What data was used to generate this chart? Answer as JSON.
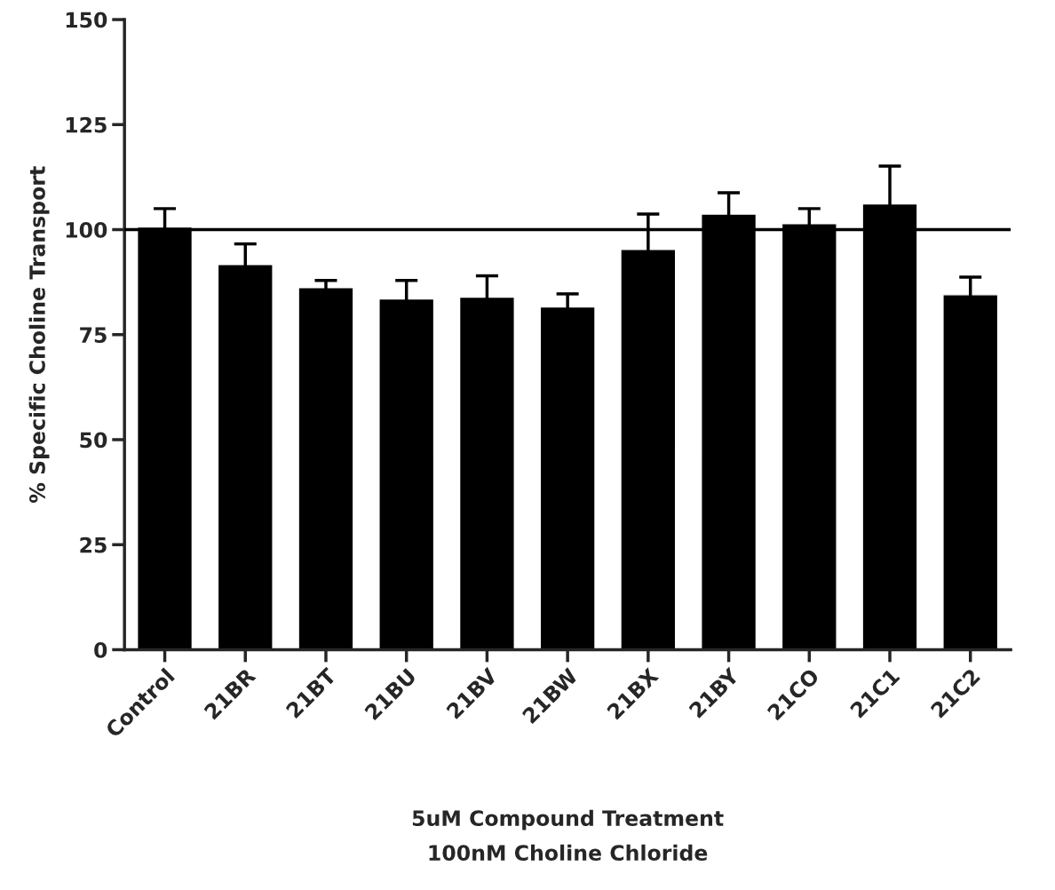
{
  "chart_data": {
    "type": "bar",
    "xlabel": "5uM Compound Treatment\n100nM Choline Chloride",
    "ylabel": "% Specific Choline Transport",
    "categories": [
      "Control",
      "21BR",
      "21BT",
      "21BU",
      "21BV",
      "21BW",
      "21BX",
      "21BY",
      "21CO",
      "21C1",
      "21C2"
    ],
    "values": [
      100.6,
      91.7,
      86.2,
      83.5,
      83.9,
      81.6,
      95.3,
      103.7,
      101.4,
      106.1,
      84.5
    ],
    "errors": [
      4.4,
      4.9,
      1.7,
      4.4,
      5.1,
      3.1,
      8.4,
      5.1,
      3.6,
      9.0,
      4.2
    ],
    "color": "#000000",
    "ylim": [
      0,
      150
    ],
    "yticks": [
      0,
      25,
      50,
      75,
      100,
      125,
      150
    ],
    "ref_lines": [
      {
        "axis": "y",
        "value": 100,
        "color": "#000000"
      }
    ],
    "grid": false,
    "legend": false
  }
}
